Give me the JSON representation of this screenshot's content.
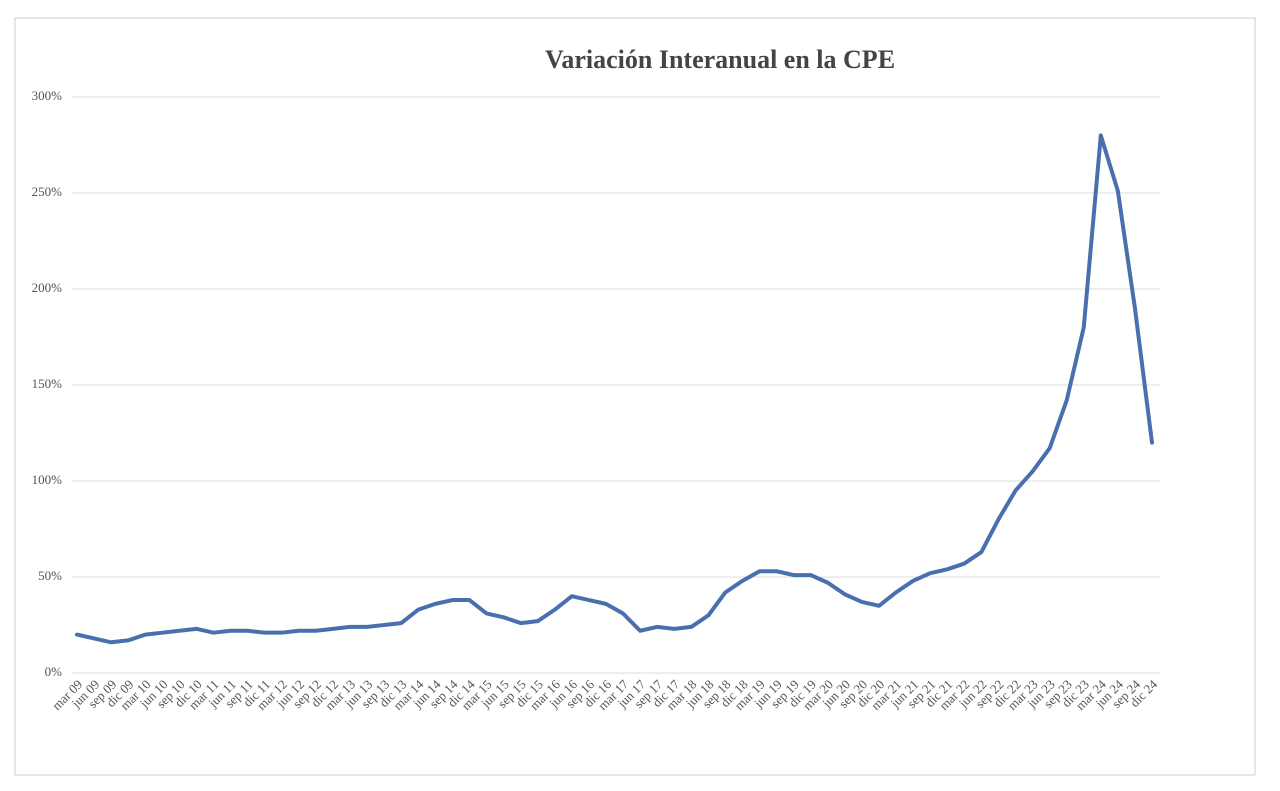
{
  "chart_data": {
    "type": "line",
    "title": "Variación Interanual en la CPE",
    "categories": [
      "mar 09",
      "jun 09",
      "sep 09",
      "dic 09",
      "mar 10",
      "jun 10",
      "sep 10",
      "dic 10",
      "mar 11",
      "jun 11",
      "sep 11",
      "dic 11",
      "mar 12",
      "jun 12",
      "sep 12",
      "dic 12",
      "mar 13",
      "jun 13",
      "sep 13",
      "dic 13",
      "mar 14",
      "jun 14",
      "sep 14",
      "dic 14",
      "mar 15",
      "jun 15",
      "sep 15",
      "dic 15",
      "mar 16",
      "jun 16",
      "sep 16",
      "dic 16",
      "mar 17",
      "jun 17",
      "sep 17",
      "dic 17",
      "mar 18",
      "jun 18",
      "sep 18",
      "dic 18",
      "mar 19",
      "jun 19",
      "sep 19",
      "dic 19",
      "mar 20",
      "jun 20",
      "sep 20",
      "dic 20",
      "mar 21",
      "jun 21",
      "sep 21",
      "dic 21",
      "mar 22",
      "jun 22",
      "sep 22",
      "dic 22",
      "mar 23",
      "jun 23",
      "sep 23",
      "dic 23",
      "mar 24",
      "jun 24",
      "sep 24",
      "dic 24"
    ],
    "series": [
      {
        "name": "CPE",
        "color": "#4a6fae",
        "values": [
          20,
          18,
          16,
          17,
          20,
          21,
          22,
          23,
          21,
          22,
          22,
          21,
          21,
          22,
          22,
          23,
          24,
          24,
          25,
          26,
          33,
          36,
          38,
          38,
          31,
          29,
          26,
          27,
          33,
          40,
          38,
          36,
          31,
          22,
          24,
          23,
          24,
          30,
          42,
          48,
          53,
          53,
          51,
          51,
          47,
          41,
          37,
          35,
          42,
          48,
          52,
          54,
          57,
          63,
          80,
          95,
          105,
          117,
          142,
          180,
          280,
          251,
          190,
          120
        ]
      }
    ],
    "ylim": [
      0,
      300
    ],
    "yticks": [
      {
        "value": 0,
        "label": "0%"
      },
      {
        "value": 50,
        "label": "50%"
      },
      {
        "value": 100,
        "label": "100%"
      },
      {
        "value": 150,
        "label": "150%"
      },
      {
        "value": 200,
        "label": "200%"
      },
      {
        "value": 250,
        "label": "250%"
      },
      {
        "value": 300,
        "label": "300%"
      }
    ],
    "grid": true
  }
}
